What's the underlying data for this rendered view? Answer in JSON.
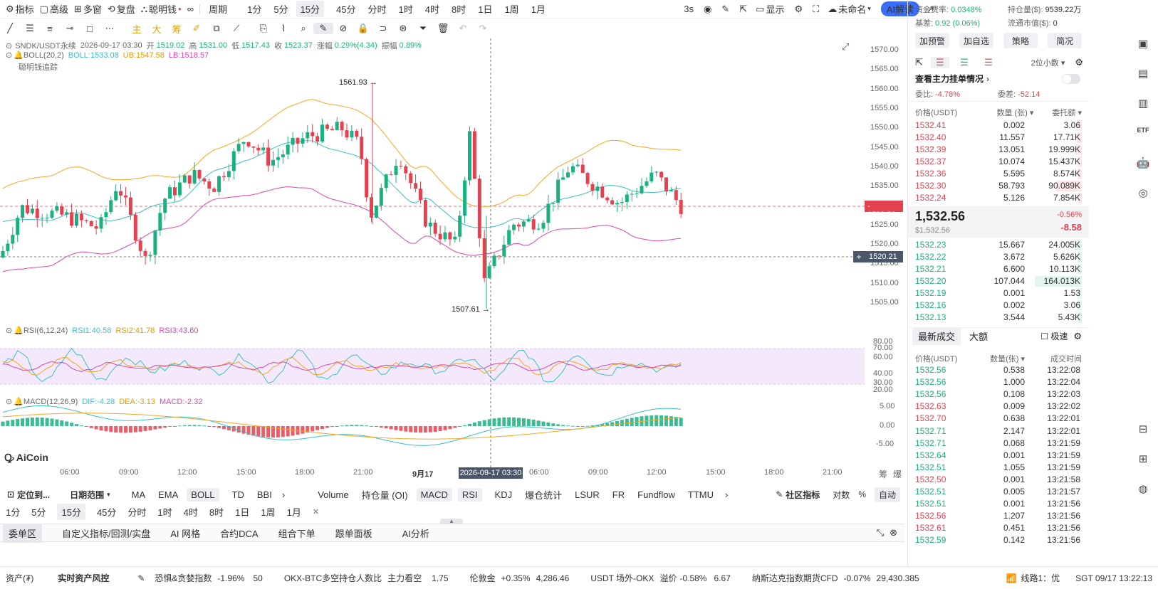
{
  "topbar": {
    "items": [
      "指标",
      "高级",
      "多窗",
      "复盘",
      "聪明钱",
      "∞"
    ],
    "chart_type": "周期",
    "periods": [
      "1分",
      "5分",
      "15分",
      "45分",
      "分时",
      "1时",
      "4时",
      "8时",
      "1日",
      "1周",
      "1月"
    ],
    "active_period": "15分",
    "right": {
      "interval": "3s",
      "display": "显示",
      "unnamed": "未命名",
      "ai": "AI解读"
    }
  },
  "drawbar": {
    "words": [
      "主",
      "大",
      "筹"
    ]
  },
  "legend": {
    "symbol": "SNDK/USDT永续",
    "time": "2026-09-17 03:30",
    "open_label": "开",
    "open": "1519.02",
    "high_label": "高",
    "high": "1531.00",
    "low_label": "低",
    "low": "1517.43",
    "close_label": "收",
    "close": "1523.37",
    "chg_label": "涨幅",
    "chg": "0.29%(4.34)",
    "amp_label": "振幅",
    "amp": "0.89%",
    "boll_name": "BOLL(20,2)",
    "boll": "BOLL:1533.08",
    "ub": "UB:1547.58",
    "lb": "LB:1518.57",
    "smart": "聪明钱追踪"
  },
  "price_axis": {
    "labels": [
      "1570.00",
      "1565.00",
      "1560.00",
      "1555.00",
      "1550.00",
      "1545.00",
      "1540.00",
      "1535.00",
      "1530.00",
      "1525.00",
      "1520.00",
      "1515.00",
      "1510.00",
      "1505.00"
    ],
    "current": "1532.56",
    "crosshair": "1520.21"
  },
  "annotations": {
    "high": "1561.93",
    "low": "1507.61"
  },
  "rsi": {
    "name": "RSI(6,12,24)",
    "rsi1": "RSI1:40.58",
    "rsi2": "RSI2:41.78",
    "rsi3": "RSI3:43.60",
    "labels": [
      "80.00",
      "70.00",
      "60.00",
      "40.00",
      "30.00",
      "20.00"
    ]
  },
  "macd": {
    "name": "MACD(12,26,9)",
    "dif": "DIF:-4.28",
    "dea": "DEA:-3.13",
    "macd": "MACD:-2.32",
    "labels": [
      "5.00",
      "0.00",
      "-5.00"
    ]
  },
  "time_axis": {
    "labels": [
      "06:00",
      "09:00",
      "12:00",
      "15:00",
      "18:00",
      "21:00",
      "9月17",
      "06:00",
      "09:00",
      "12:00",
      "15:00",
      "18:00",
      "21:00"
    ],
    "crosshair": "2026-09-17 03:30",
    "right": [
      "筹",
      "爆"
    ]
  },
  "logo": "AiCoin",
  "indbar": {
    "locate": "定位到...",
    "range": "日期范围",
    "main": [
      "MA",
      "EMA",
      "BOLL",
      "TD",
      "BBI"
    ],
    "active_main": "BOLL",
    "subs": [
      "Volume",
      "持仓量 (OI)",
      "MACD",
      "RSI",
      "KDJ",
      "爆仓统计",
      "LSUR",
      "FR",
      "Fundflow",
      "TTMU"
    ],
    "active_subs": [
      "MACD",
      "RSI"
    ],
    "community": "社区指标",
    "log": "对数",
    "pct": "%",
    "auto": "自动"
  },
  "periodbar2": {
    "items": [
      "1分",
      "5分",
      "15分",
      "45分",
      "分时",
      "1时",
      "4时",
      "8时",
      "1日",
      "1周",
      "1月"
    ],
    "active": "15分"
  },
  "panelbar": {
    "items": [
      "委单区",
      "自定义指标/回测/实盘",
      "AI 网格",
      "合约DCA",
      "组合下单",
      "跟单面板",
      "AI分析"
    ],
    "active": "委单区"
  },
  "statusbar": {
    "assets": "资产(₮)",
    "risk": "实时资产风控",
    "fear_label": "恐惧&贪婪指数",
    "fear_chg": "-1.96%",
    "fear_val": "50",
    "okx_label": "OKX-BTC多空持仓人数比",
    "okx_tag": "主力看空",
    "okx_val": "1.75",
    "gold_label": "伦敦金",
    "gold_chg": "+0.35%",
    "gold_val": "4,286.46",
    "usdt_label": "USDT 场外-OKX",
    "usdt_tag": "溢价",
    "usdt_chg": "-0.58%",
    "usdt_val": "6.67",
    "ndx_label": "纳斯达克指数期货CFD",
    "ndx_chg": "-0.07%",
    "ndx_val": "29,430.385",
    "line": "线路1：优",
    "clock": "SGT 09/17 13:22:13"
  },
  "rpanel": {
    "funding_label": "资金费率:",
    "funding": "0.0348%",
    "oi_label": "持仓量($):",
    "oi": "9539.22万",
    "basis_label": "基差:",
    "basis": "0.92 (0.06%)",
    "mcap_label": "流通市值($):",
    "mcap": "0",
    "buttons": [
      "加预警",
      "加自选",
      "策略",
      "简况"
    ],
    "decimals": "2位小数",
    "main_orders": "查看主力挂单情况",
    "ratio_label": "委比:",
    "ratio": "-4.78%",
    "diff_label": "委差:",
    "diff": "-52.14",
    "headers": {
      "price": "价格(USDT)",
      "qty": "数量 (张)",
      "total": "委托额"
    },
    "asks": [
      {
        "p": "1532.41",
        "q": "0.002",
        "t": "3.06",
        "w": 0.02
      },
      {
        "p": "1532.40",
        "q": "11.557",
        "t": "17.71K",
        "w": 0.11
      },
      {
        "p": "1532.39",
        "q": "13.051",
        "t": "19.999K",
        "w": 0.12
      },
      {
        "p": "1532.37",
        "q": "10.074",
        "t": "15.437K",
        "w": 0.09
      },
      {
        "p": "1532.36",
        "q": "5.595",
        "t": "8.574K",
        "w": 0.05
      },
      {
        "p": "1532.30",
        "q": "58.793",
        "t": "90.089K",
        "w": 0.55
      },
      {
        "p": "1532.24",
        "q": "5.126",
        "t": "7.854K",
        "w": 0.05
      }
    ],
    "last": "1,532.56",
    "last_usd": "$1,532.56",
    "last_pct": "-0.56%",
    "last_chg": "-8.58",
    "bids": [
      {
        "p": "1532.23",
        "q": "15.667",
        "t": "24.005K",
        "w": 0.15
      },
      {
        "p": "1532.22",
        "q": "3.672",
        "t": "5.626K",
        "w": 0.03
      },
      {
        "p": "1532.21",
        "q": "6.600",
        "t": "10.113K",
        "w": 0.06
      },
      {
        "p": "1532.20",
        "q": "107.044",
        "t": "164.013K",
        "w": 1.0
      },
      {
        "p": "1532.19",
        "q": "0.001",
        "t": "1.53",
        "w": 0.01
      },
      {
        "p": "1532.16",
        "q": "0.002",
        "t": "3.06",
        "w": 0.02
      },
      {
        "p": "1532.13",
        "q": "3.544",
        "t": "5.43K",
        "w": 0.03
      }
    ],
    "trades_tab": "最新成交",
    "big_tab": "大额",
    "fast": "极速",
    "trade_headers": {
      "price": "价格(USDT)",
      "qty": "数量(张)",
      "time": "成交时间"
    },
    "trades": [
      {
        "p": "1532.56",
        "q": "0.538",
        "t": "13:22:08",
        "s": "g"
      },
      {
        "p": "1532.56",
        "q": "1.000",
        "t": "13:22:04",
        "s": "g"
      },
      {
        "p": "1532.56",
        "q": "0.108",
        "t": "13:22:03",
        "s": "g"
      },
      {
        "p": "1532.63",
        "q": "0.009",
        "t": "13:22:02",
        "s": "r"
      },
      {
        "p": "1532.70",
        "q": "0.638",
        "t": "13:22:01",
        "s": "r"
      },
      {
        "p": "1532.71",
        "q": "2.147",
        "t": "13:22:01",
        "s": "g"
      },
      {
        "p": "1532.71",
        "q": "0.068",
        "t": "13:21:59",
        "s": "g"
      },
      {
        "p": "1532.64",
        "q": "0.001",
        "t": "13:21:59",
        "s": "g"
      },
      {
        "p": "1532.51",
        "q": "1.055",
        "t": "13:21:59",
        "s": "g"
      },
      {
        "p": "1532.50",
        "q": "0.001",
        "t": "13:21:58",
        "s": "r"
      },
      {
        "p": "1532.51",
        "q": "0.005",
        "t": "13:21:57",
        "s": "g"
      },
      {
        "p": "1532.51",
        "q": "0.001",
        "t": "13:21:56",
        "s": "g"
      },
      {
        "p": "1532.56",
        "q": "1.207",
        "t": "13:21:56",
        "s": "r"
      },
      {
        "p": "1532.61",
        "q": "0.451",
        "t": "13:21:56",
        "s": "r"
      },
      {
        "p": "1532.59",
        "q": "0.142",
        "t": "13:21:56",
        "s": "g"
      }
    ]
  },
  "colors": {
    "up": "#1bb07f",
    "down": "#e5424f",
    "boll_mid": "#39c0c7",
    "boll_ub": "#f5a623",
    "boll_lb": "#d946b3",
    "accent": "#3b6cf6"
  }
}
